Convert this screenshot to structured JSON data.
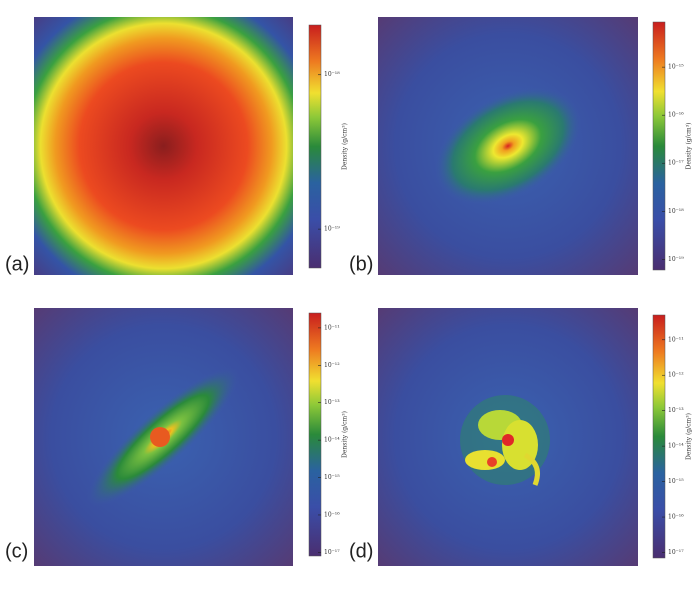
{
  "chart_data": [
    {
      "type": "heatmap",
      "panel_label": "(a)",
      "colorbar": {
        "label": "Density (g/cm³)",
        "log": true,
        "lim": [
          5.6e-20,
          2.1e-18
        ],
        "ticks": [
          {
            "value": 1e-18,
            "label": "10⁻¹⁸"
          },
          {
            "value": 1e-19,
            "label": "10⁻¹⁹"
          }
        ]
      }
    },
    {
      "type": "heatmap",
      "panel_label": "(b)",
      "colorbar": {
        "label": "Density (g/cm³)",
        "log": true,
        "lim": [
          6e-20,
          8.7e-15
        ],
        "ticks": [
          {
            "value": 1e-15,
            "label": "10⁻¹⁵"
          },
          {
            "value": 1e-16,
            "label": "10⁻¹⁶"
          },
          {
            "value": 1e-17,
            "label": "10⁻¹⁷"
          },
          {
            "value": 1e-18,
            "label": "10⁻¹⁸"
          },
          {
            "value": 1e-19,
            "label": "10⁻¹⁹"
          }
        ]
      }
    },
    {
      "type": "heatmap",
      "panel_label": "(c)",
      "colorbar": {
        "label": "Density (g/cm³)",
        "log": true,
        "lim": [
          8e-18,
          2.5e-11
        ],
        "ticks": [
          {
            "value": 1e-11,
            "label": "10⁻¹¹"
          },
          {
            "value": 1e-12,
            "label": "10⁻¹²"
          },
          {
            "value": 1e-13,
            "label": "10⁻¹³"
          },
          {
            "value": 1e-14,
            "label": "10⁻¹⁴"
          },
          {
            "value": 1e-15,
            "label": "10⁻¹⁵"
          },
          {
            "value": 1e-16,
            "label": "10⁻¹⁶"
          },
          {
            "value": 1e-17,
            "label": "10⁻¹⁷"
          }
        ]
      }
    },
    {
      "type": "heatmap",
      "panel_label": "(d)",
      "colorbar": {
        "label": "Density (g/cm³)",
        "log": true,
        "lim": [
          7e-18,
          5e-11
        ],
        "ticks": [
          {
            "value": 1e-11,
            "label": "10⁻¹¹"
          },
          {
            "value": 1e-12,
            "label": "10⁻¹²"
          },
          {
            "value": 1e-13,
            "label": "10⁻¹³"
          },
          {
            "value": 1e-14,
            "label": "10⁻¹⁴"
          },
          {
            "value": 1e-15,
            "label": "10⁻¹⁵"
          },
          {
            "value": 1e-16,
            "label": "10⁻¹⁶"
          },
          {
            "value": 1e-17,
            "label": "10⁻¹⁷"
          }
        ]
      }
    }
  ]
}
